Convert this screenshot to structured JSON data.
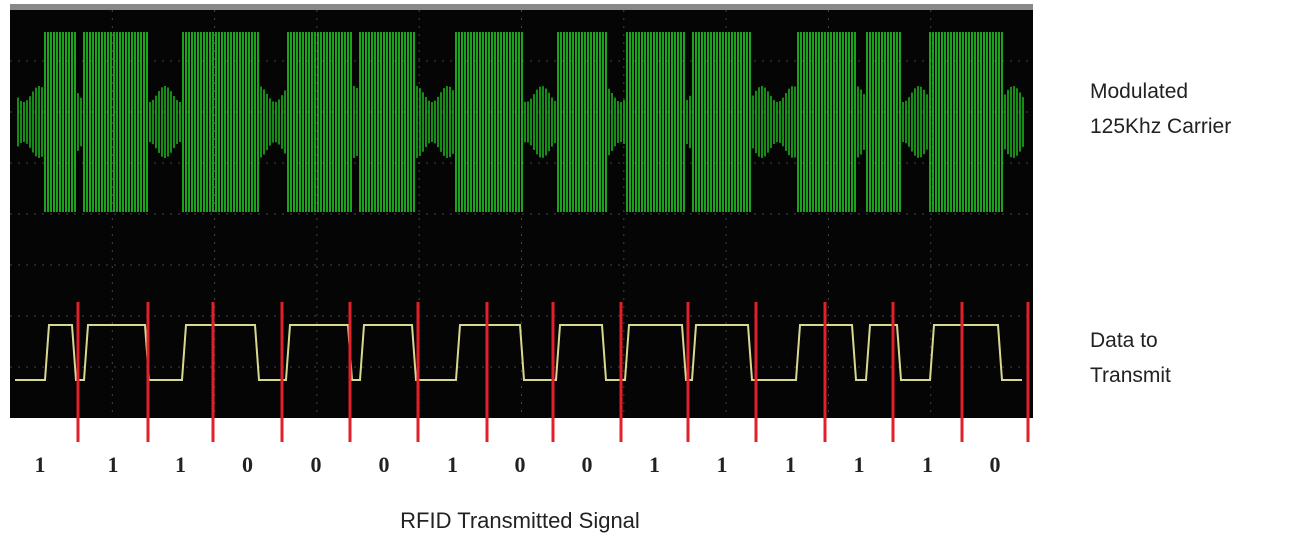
{
  "signal_label": {
    "lines": [
      "Modulated",
      "125Khz Carrier"
    ]
  },
  "data_label": {
    "lines": [
      "Data to",
      "Transmit"
    ]
  },
  "bits": [
    1,
    1,
    1,
    0,
    0,
    0,
    1,
    0,
    0,
    1,
    1,
    1,
    1,
    1,
    0
  ],
  "caption": "RFID Transmitted Signal"
}
